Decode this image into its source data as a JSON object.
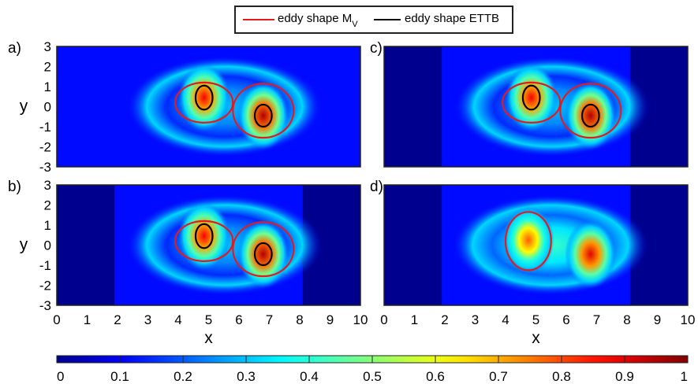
{
  "legend": {
    "items": [
      {
        "label": "eddy shape M",
        "subscript": "V",
        "color": "#e41a1c"
      },
      {
        "label": "eddy shape ETTB",
        "color": "#000000"
      }
    ]
  },
  "colors": {
    "colormap": [
      "#00008f",
      "#0000ff",
      "#00ffff",
      "#ffff00",
      "#ff0000",
      "#800000"
    ],
    "contour_mv": "#e41a1c",
    "contour_ettb": "#000000",
    "background_field": "#00008f"
  },
  "chart_data": [
    {
      "type": "heatmap",
      "panel": "a)",
      "xlim": [
        0,
        10
      ],
      "ylim": [
        -3,
        3
      ],
      "yticks": [
        "3",
        "2",
        "1",
        "0",
        "-1",
        "-2",
        "-3"
      ],
      "ylabel": "y",
      "field_extent_x": [
        0,
        10
      ],
      "eddies": [
        {
          "x": 4.85,
          "y": 0.45,
          "peak": 0.88
        },
        {
          "x": 6.8,
          "y": -0.45,
          "peak": 0.95
        }
      ],
      "contours_mv": [
        {
          "x": 4.85,
          "y": 0.2,
          "rx": 0.95,
          "ry": 1.0
        },
        {
          "x": 6.8,
          "y": -0.2,
          "rx": 1.0,
          "ry": 1.35
        }
      ],
      "contours_ettb": [
        {
          "x": 4.85,
          "y": 0.45,
          "rx": 0.28,
          "ry": 0.6
        },
        {
          "x": 6.8,
          "y": -0.45,
          "rx": 0.28,
          "ry": 0.55
        }
      ]
    },
    {
      "type": "heatmap",
      "panel": "c)",
      "xlim": [
        0,
        10
      ],
      "ylim": [
        -3,
        3
      ],
      "field_extent_x": [
        1.9,
        8.1
      ],
      "eddies": [
        {
          "x": 4.85,
          "y": 0.45,
          "peak": 0.88
        },
        {
          "x": 6.8,
          "y": -0.45,
          "peak": 0.95
        }
      ],
      "contours_mv": [
        {
          "x": 4.85,
          "y": 0.2,
          "rx": 0.95,
          "ry": 1.0
        },
        {
          "x": 6.8,
          "y": -0.2,
          "rx": 1.0,
          "ry": 1.35
        }
      ],
      "contours_ettb": [
        {
          "x": 4.85,
          "y": 0.45,
          "rx": 0.28,
          "ry": 0.6
        },
        {
          "x": 6.8,
          "y": -0.45,
          "rx": 0.28,
          "ry": 0.55
        }
      ]
    },
    {
      "type": "heatmap",
      "panel": "b)",
      "xlim": [
        0,
        10
      ],
      "ylim": [
        -3,
        3
      ],
      "xticks": [
        "0",
        "1",
        "2",
        "3",
        "4",
        "5",
        "6",
        "7",
        "8",
        "9",
        "10"
      ],
      "yticks": [
        "3",
        "2",
        "1",
        "0",
        "-1",
        "-2",
        "-3"
      ],
      "xlabel": "x",
      "ylabel": "y",
      "field_extent_x": [
        1.9,
        8.1
      ],
      "eddies": [
        {
          "x": 4.85,
          "y": 0.45,
          "peak": 0.88
        },
        {
          "x": 6.8,
          "y": -0.45,
          "peak": 0.95
        }
      ],
      "contours_mv": [
        {
          "x": 4.85,
          "y": 0.2,
          "rx": 0.95,
          "ry": 1.0
        },
        {
          "x": 6.8,
          "y": -0.2,
          "rx": 1.0,
          "ry": 1.35
        }
      ],
      "contours_ettb": [
        {
          "x": 4.85,
          "y": 0.45,
          "rx": 0.28,
          "ry": 0.6
        },
        {
          "x": 6.8,
          "y": -0.45,
          "rx": 0.28,
          "ry": 0.55
        }
      ]
    },
    {
      "type": "heatmap",
      "panel": "d)",
      "xlim": [
        0,
        10
      ],
      "ylim": [
        -3,
        3
      ],
      "xticks": [
        "0",
        "1",
        "2",
        "3",
        "4",
        "5",
        "6",
        "7",
        "8",
        "9",
        "10"
      ],
      "xlabel": "x",
      "field_extent_x": [
        1.9,
        8.1
      ],
      "eddies": [
        {
          "x": 4.75,
          "y": 0.25,
          "peak": 0.78
        },
        {
          "x": 6.8,
          "y": -0.45,
          "peak": 0.9
        }
      ],
      "contours_mv": [
        {
          "x": 4.75,
          "y": 0.2,
          "rx": 0.75,
          "ry": 1.45
        }
      ],
      "contours_ettb": []
    },
    {
      "type": "colorbar",
      "range": [
        0,
        1
      ],
      "ticks": [
        "0",
        "0.1",
        "0.2",
        "0.3",
        "0.4",
        "0.5",
        "0.6",
        "0.7",
        "0.8",
        "0.9",
        "1"
      ]
    }
  ]
}
